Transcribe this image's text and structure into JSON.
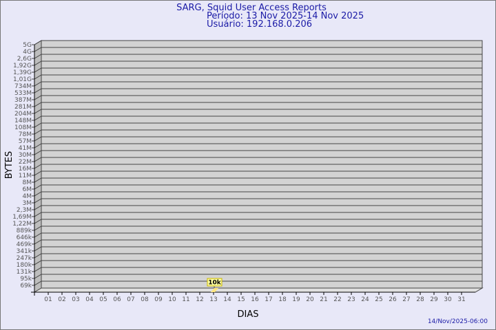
{
  "chart_data": {
    "type": "bar",
    "title": [
      "SARG, Squid User Access Reports",
      "Período: 13 Nov 2025-14 Nov 2025",
      "Usuário: 192.168.0.206"
    ],
    "xlabel": "DIAS",
    "ylabel": "BYTES",
    "y_scale": "log",
    "y_ticks": [
      "5G",
      "4G",
      "2,6G",
      "1,92G",
      "1,39G",
      "1,01G",
      "734M",
      "533M",
      "387M",
      "281M",
      "204M",
      "148M",
      "108M",
      "78M",
      "57M",
      "41M",
      "30M",
      "22M",
      "16M",
      "11M",
      "8M",
      "6M",
      "4M",
      "3M",
      "2,3M",
      "1,69M",
      "1,22M",
      "889k",
      "646k",
      "469k",
      "341k",
      "247k",
      "180k",
      "131k",
      "95k",
      "69k"
    ],
    "categories": [
      "01",
      "02",
      "03",
      "04",
      "05",
      "06",
      "07",
      "08",
      "09",
      "10",
      "11",
      "12",
      "13",
      "14",
      "15",
      "16",
      "17",
      "18",
      "19",
      "20",
      "21",
      "22",
      "23",
      "24",
      "25",
      "26",
      "27",
      "28",
      "29",
      "30",
      "31"
    ],
    "values": [
      {
        "day": "13",
        "value": 10000,
        "label": "10k"
      }
    ],
    "grid": true,
    "colors": {
      "title": "#1a1aa6",
      "wall": "#d3d3d3",
      "side": "#bdbdbd",
      "bar": "#ffe680",
      "label_bg": "#ffffa0"
    }
  },
  "footer": {
    "timestamp": "14/Nov/2025-06:00"
  }
}
